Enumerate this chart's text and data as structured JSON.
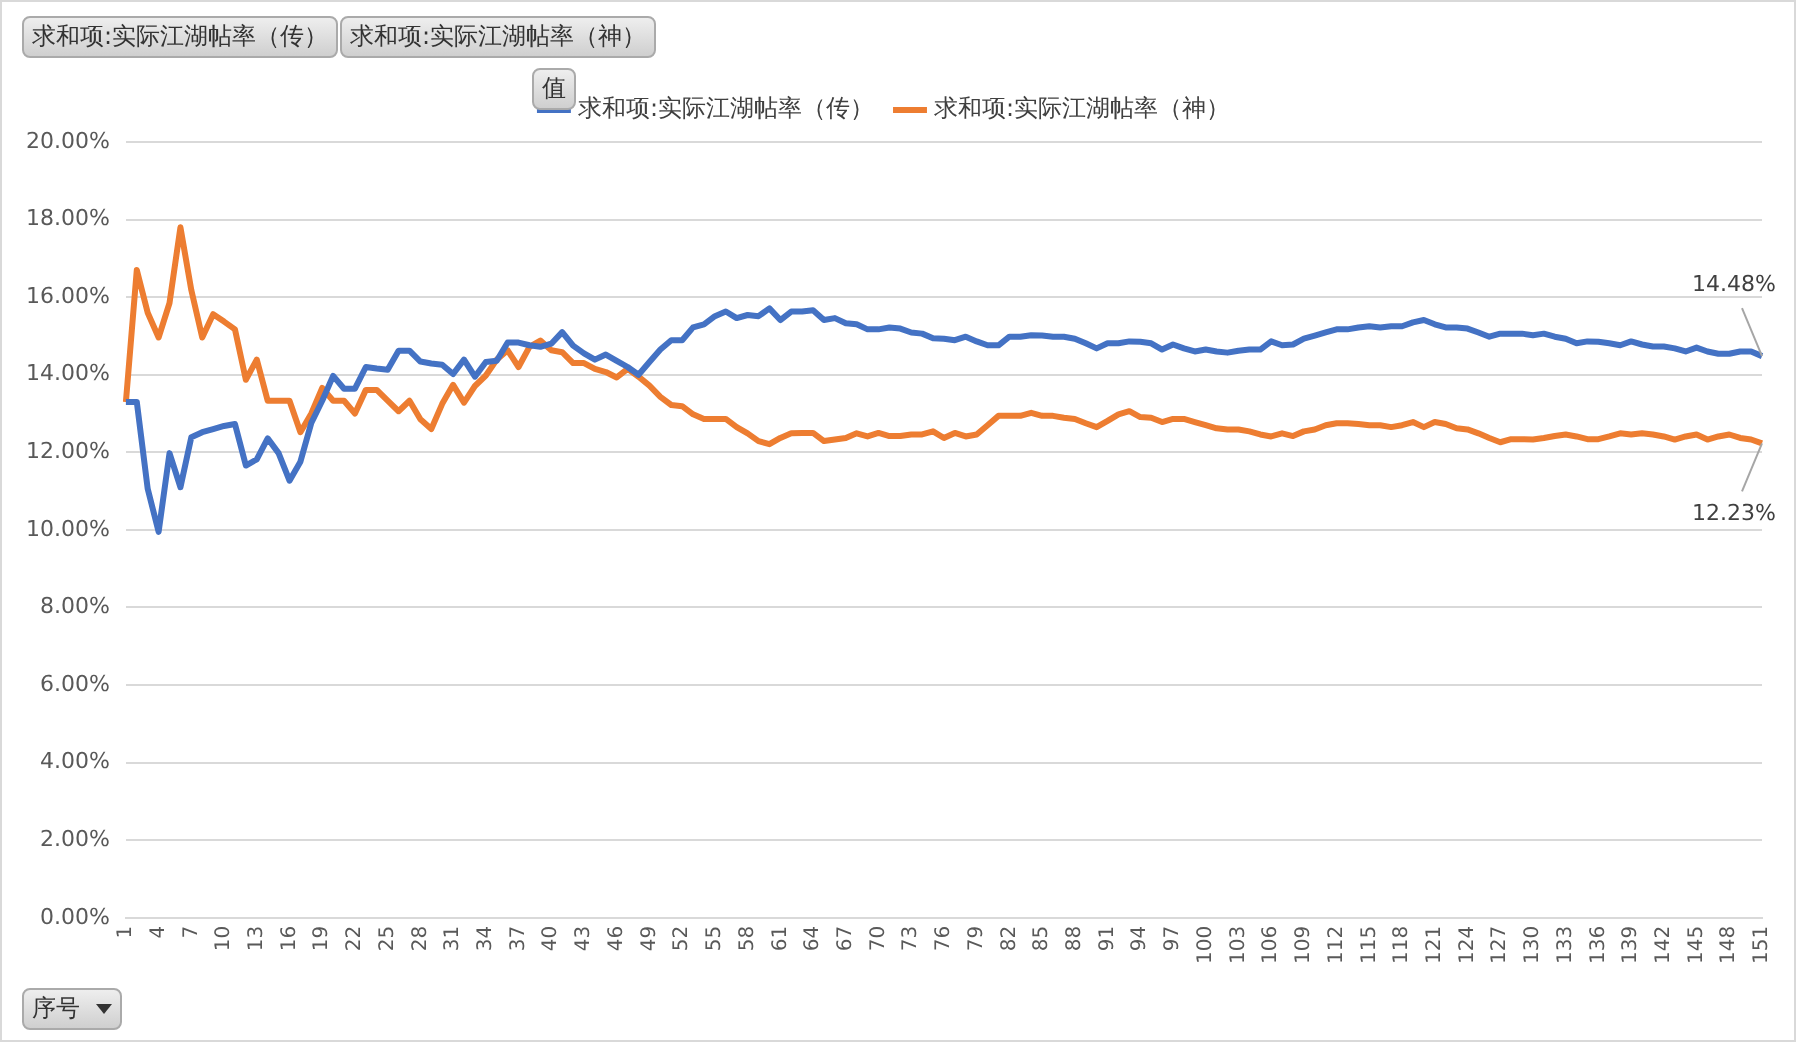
{
  "chart_data": {
    "type": "line",
    "categories": [
      "1",
      null,
      null,
      "4",
      null,
      null,
      "7",
      null,
      null,
      "10",
      null,
      null,
      "13",
      null,
      null,
      "16",
      null,
      null,
      "19",
      null,
      null,
      "22",
      null,
      null,
      "25",
      null,
      null,
      "28",
      null,
      null,
      "31",
      null,
      null,
      "34",
      null,
      null,
      "37",
      null,
      null,
      "40",
      null,
      null,
      "43",
      null,
      null,
      "46",
      null,
      null,
      "49",
      null,
      null,
      "52",
      null,
      null,
      "55",
      null,
      null,
      "58",
      null,
      null,
      "61",
      null,
      null,
      "64",
      null,
      null,
      "67",
      null,
      null,
      "70",
      null,
      null,
      "73",
      null,
      null,
      "76",
      null,
      null,
      "79",
      null,
      null,
      "82",
      null,
      null,
      "85",
      null,
      null,
      "88",
      null,
      null,
      "91",
      null,
      null,
      "94",
      null,
      null,
      "97",
      null,
      null,
      "100",
      null,
      null,
      "103",
      null,
      null,
      "106",
      null,
      null,
      "109",
      null,
      null,
      "112",
      null,
      null,
      "115",
      null,
      null,
      "118",
      null,
      null,
      "121",
      null,
      null,
      "124",
      null,
      null,
      "127",
      null,
      null,
      "130",
      null,
      null,
      "133",
      null,
      null,
      "136",
      null,
      null,
      "139",
      null,
      null,
      "142",
      null,
      null,
      "145",
      null,
      null,
      "148",
      null,
      null,
      "151"
    ],
    "series": [
      {
        "name": "求和项:实际江湖帖率（传）",
        "color": "#4472c4",
        "values": [
          13.3,
          13.3,
          11.06,
          9.95,
          11.98,
          11.1,
          12.39,
          12.52,
          12.6,
          12.68,
          12.73,
          11.66,
          11.82,
          12.36,
          11.98,
          11.27,
          11.76,
          12.76,
          13.33,
          13.97,
          13.64,
          13.64,
          14.2,
          14.16,
          14.13,
          14.62,
          14.62,
          14.34,
          14.29,
          14.26,
          14.02,
          14.39,
          13.95,
          14.33,
          14.36,
          14.83,
          14.83,
          14.76,
          14.72,
          14.8,
          15.1,
          14.75,
          14.55,
          14.39,
          14.52,
          14.36,
          14.2,
          14.0,
          14.33,
          14.65,
          14.89,
          14.89,
          15.22,
          15.3,
          15.51,
          15.63,
          15.46,
          15.54,
          15.51,
          15.71,
          15.41,
          15.63,
          15.63,
          15.66,
          15.41,
          15.46,
          15.33,
          15.3,
          15.17,
          15.17,
          15.22,
          15.19,
          15.09,
          15.06,
          14.94,
          14.93,
          14.89,
          14.98,
          14.86,
          14.76,
          14.76,
          14.98,
          14.98,
          15.02,
          15.01,
          14.98,
          14.98,
          14.93,
          14.81,
          14.68,
          14.81,
          14.81,
          14.86,
          14.85,
          14.81,
          14.65,
          14.78,
          14.68,
          14.6,
          14.65,
          14.6,
          14.57,
          14.62,
          14.65,
          14.65,
          14.86,
          14.76,
          14.78,
          14.93,
          15.01,
          15.09,
          15.17,
          15.17,
          15.22,
          15.25,
          15.22,
          15.25,
          15.25,
          15.35,
          15.41,
          15.3,
          15.22,
          15.22,
          15.19,
          15.09,
          14.98,
          15.06,
          15.06,
          15.06,
          15.02,
          15.06,
          14.98,
          14.93,
          14.81,
          14.86,
          14.85,
          14.81,
          14.76,
          14.86,
          14.78,
          14.73,
          14.73,
          14.68,
          14.6,
          14.7,
          14.6,
          14.54,
          14.54,
          14.6,
          14.6,
          14.48
        ],
        "value_labels": [
          null,
          null,
          null,
          null,
          null,
          null,
          null,
          null,
          null,
          null,
          null,
          null,
          null,
          null,
          null,
          null,
          null,
          null,
          null,
          null,
          null,
          null,
          null,
          null,
          null,
          null,
          null,
          null,
          null,
          null,
          null,
          null,
          null,
          null,
          null,
          null,
          null,
          null,
          null,
          null,
          null,
          null,
          null,
          null,
          null,
          null,
          null,
          null,
          null,
          null,
          null,
          null,
          null,
          null,
          null,
          null,
          null,
          null,
          null,
          null,
          null,
          null,
          null,
          null,
          null,
          null,
          null,
          null,
          null,
          null,
          null,
          null,
          null,
          null,
          null,
          null,
          null,
          null,
          null,
          null,
          null,
          null,
          null,
          null,
          null,
          null,
          null,
          null,
          null,
          null,
          null,
          null,
          null,
          null,
          null,
          null,
          null,
          null,
          null,
          null,
          null,
          null,
          null,
          null,
          null,
          null,
          null,
          null,
          null,
          null,
          null,
          null,
          null,
          null,
          null,
          null,
          null,
          null,
          null,
          null,
          null,
          null,
          null,
          null,
          null,
          null,
          null,
          null,
          null,
          null,
          null,
          null,
          null,
          null,
          null,
          null,
          null,
          null,
          null,
          null,
          null,
          null,
          null,
          null,
          null,
          null,
          null,
          null,
          null,
          null,
          "14.48%"
        ]
      },
      {
        "name": "求和项:实际江湖帖率（神）",
        "color": "#ed7d31",
        "values": [
          13.3,
          16.7,
          15.6,
          14.96,
          15.85,
          17.8,
          16.18,
          14.96,
          15.56,
          15.37,
          15.17,
          13.87,
          14.39,
          13.33,
          13.33,
          13.33,
          12.52,
          13.0,
          13.66,
          13.33,
          13.33,
          13.0,
          13.61,
          13.61,
          13.33,
          13.06,
          13.33,
          12.85,
          12.6,
          13.25,
          13.74,
          13.28,
          13.71,
          13.98,
          14.39,
          14.63,
          14.2,
          14.72,
          14.88,
          14.63,
          14.58,
          14.3,
          14.3,
          14.15,
          14.07,
          13.93,
          14.15,
          13.95,
          13.72,
          13.43,
          13.22,
          13.19,
          12.98,
          12.86,
          12.86,
          12.86,
          12.65,
          12.49,
          12.29,
          12.21,
          12.37,
          12.49,
          12.5,
          12.5,
          12.29,
          12.33,
          12.37,
          12.49,
          12.41,
          12.5,
          12.42,
          12.42,
          12.46,
          12.46,
          12.54,
          12.37,
          12.5,
          12.41,
          12.46,
          12.7,
          12.94,
          12.94,
          12.94,
          13.02,
          12.94,
          12.94,
          12.89,
          12.86,
          12.75,
          12.65,
          12.81,
          12.98,
          13.06,
          12.91,
          12.89,
          12.78,
          12.86,
          12.86,
          12.78,
          12.7,
          12.62,
          12.59,
          12.59,
          12.54,
          12.46,
          12.41,
          12.49,
          12.42,
          12.54,
          12.59,
          12.7,
          12.75,
          12.75,
          12.73,
          12.7,
          12.7,
          12.65,
          12.7,
          12.78,
          12.65,
          12.78,
          12.73,
          12.62,
          12.59,
          12.49,
          12.37,
          12.26,
          12.34,
          12.34,
          12.33,
          12.37,
          12.42,
          12.46,
          12.41,
          12.34,
          12.34,
          12.41,
          12.49,
          12.46,
          12.49,
          12.46,
          12.41,
          12.33,
          12.41,
          12.46,
          12.33,
          12.41,
          12.46,
          12.37,
          12.33,
          12.23
        ],
        "value_labels": [
          null,
          null,
          null,
          null,
          null,
          null,
          null,
          null,
          null,
          null,
          null,
          null,
          null,
          null,
          null,
          null,
          null,
          null,
          null,
          null,
          null,
          null,
          null,
          null,
          null,
          null,
          null,
          null,
          null,
          null,
          null,
          null,
          null,
          null,
          null,
          null,
          null,
          null,
          null,
          null,
          null,
          null,
          null,
          null,
          null,
          null,
          null,
          null,
          null,
          null,
          null,
          null,
          null,
          null,
          null,
          null,
          null,
          null,
          null,
          null,
          null,
          null,
          null,
          null,
          null,
          null,
          null,
          null,
          null,
          null,
          null,
          null,
          null,
          null,
          null,
          null,
          null,
          null,
          null,
          null,
          null,
          null,
          null,
          null,
          null,
          null,
          null,
          null,
          null,
          null,
          null,
          null,
          null,
          null,
          null,
          null,
          null,
          null,
          null,
          null,
          null,
          null,
          null,
          null,
          null,
          null,
          null,
          null,
          null,
          null,
          null,
          null,
          null,
          null,
          null,
          null,
          null,
          null,
          null,
          null,
          null,
          null,
          null,
          null,
          null,
          null,
          null,
          null,
          null,
          null,
          null,
          null,
          null,
          null,
          null,
          null,
          null,
          null,
          null,
          null,
          null,
          null,
          null,
          null,
          null,
          null,
          null,
          null,
          null,
          null,
          "12.23%"
        ]
      }
    ],
    "ylim": [
      0,
      20
    ],
    "yticks": [
      {
        "value": 0,
        "label": "0.00%"
      },
      {
        "value": 2,
        "label": "2.00%"
      },
      {
        "value": 4,
        "label": "4.00%"
      },
      {
        "value": 6,
        "label": "6.00%"
      },
      {
        "value": 8,
        "label": "8.00%"
      },
      {
        "value": 10,
        "label": "10.00%"
      },
      {
        "value": 12,
        "label": "12.00%"
      },
      {
        "value": 14,
        "label": "14.00%"
      },
      {
        "value": 16,
        "label": "16.00%"
      },
      {
        "value": 18,
        "label": "18.00%"
      },
      {
        "value": 20,
        "label": "20.00%"
      }
    ],
    "grid": "y",
    "legend": "top",
    "marker": "none",
    "legend_title": "值",
    "xlabel": "序号",
    "annotations": [
      "求和项:实际江湖帖率（传）",
      "求和项:实际江湖帖率（神）"
    ]
  }
}
